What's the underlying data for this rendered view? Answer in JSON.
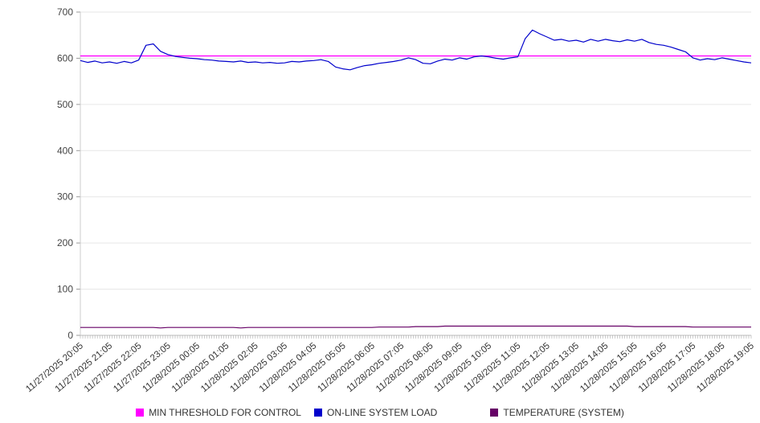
{
  "chart_data": {
    "type": "line",
    "title": "",
    "xlabel": "",
    "ylabel": "",
    "ylim": [
      0,
      700
    ],
    "y_ticks": [
      0,
      100,
      200,
      300,
      400,
      500,
      600,
      700
    ],
    "grid": "horizontal",
    "legend_position": "bottom-center",
    "points_per_label": 4,
    "x_tick_labels": [
      "11/27/2025 20:05",
      "11/27/2025 21:05",
      "11/27/2025 22:05",
      "11/27/2025 23:05",
      "11/28/2025 00:05",
      "11/28/2025 01:05",
      "11/28/2025 02:05",
      "11/28/2025 03:05",
      "11/28/2025 04:05",
      "11/28/2025 05:05",
      "11/28/2025 06:05",
      "11/28/2025 07:05",
      "11/28/2025 08:05",
      "11/28/2025 09:05",
      "11/28/2025 10:05",
      "11/28/2025 11:05",
      "11/28/2025 12:05",
      "11/28/2025 13:05",
      "11/28/2025 14:05",
      "11/28/2025 15:05",
      "11/28/2025 16:05",
      "11/28/2025 17:05",
      "11/28/2025 18:05",
      "11/28/2025 19:05"
    ],
    "series": [
      {
        "name": "MIN THRESHOLD FOR CONTROL",
        "color": "#ff00ff",
        "type": "constant",
        "value": 605
      },
      {
        "name": "ON-LINE SYSTEM LOAD",
        "color": "#0000cc",
        "type": "points",
        "values": [
          595,
          591,
          594,
          590,
          592,
          589,
          593,
          590,
          596,
          628,
          631,
          615,
          608,
          604,
          602,
          600,
          599,
          597,
          596,
          594,
          593,
          592,
          594,
          591,
          592,
          590,
          591,
          589,
          590,
          593,
          592,
          594,
          595,
          597,
          593,
          581,
          577,
          575,
          580,
          584,
          586,
          589,
          591,
          593,
          596,
          601,
          597,
          589,
          588,
          594,
          598,
          596,
          601,
          598,
          603,
          605,
          603,
          600,
          598,
          601,
          603,
          642,
          661,
          653,
          646,
          639,
          641,
          637,
          639,
          635,
          641,
          637,
          641,
          638,
          636,
          640,
          637,
          641,
          634,
          630,
          628,
          624,
          619,
          614,
          601,
          596,
          599,
          597,
          601,
          598,
          595,
          592,
          590
        ]
      },
      {
        "name": "TEMPERATURE (SYSTEM)",
        "color": "#660066",
        "type": "points",
        "values": [
          17,
          17,
          17,
          17,
          17,
          17,
          17,
          17,
          17,
          17,
          17,
          16,
          17,
          17,
          17,
          17,
          17,
          17,
          17,
          17,
          17,
          17,
          16,
          17,
          17,
          17,
          17,
          17,
          17,
          17,
          17,
          17,
          17,
          17,
          17,
          17,
          17,
          17,
          17,
          17,
          17,
          18,
          18,
          18,
          18,
          18,
          19,
          19,
          19,
          19,
          20,
          20,
          20,
          20,
          20,
          20,
          20,
          20,
          20,
          20,
          20,
          20,
          20,
          20,
          20,
          20,
          20,
          20,
          20,
          20,
          20,
          20,
          20,
          20,
          20,
          20,
          19,
          19,
          19,
          19,
          19,
          19,
          19,
          19,
          18,
          18,
          18,
          18,
          18,
          18,
          18,
          18,
          18
        ]
      }
    ]
  }
}
